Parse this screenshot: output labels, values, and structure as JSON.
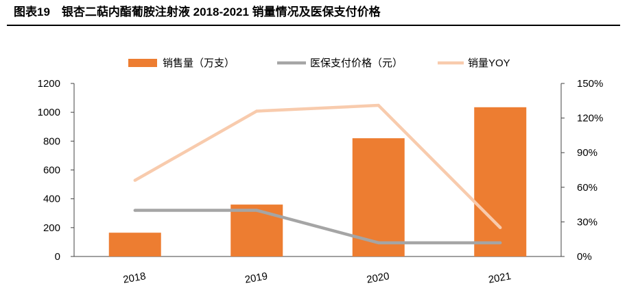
{
  "figure_title": "图表19　银杏二萜内酯葡胺注射液 2018-2021 销量情况及医保支付价格",
  "chart_data": {
    "type": "bar",
    "title": "图表19　银杏二萜内酯葡胺注射液 2018-2021 销量情况及医保支付价格",
    "categories": [
      "2018",
      "2019",
      "2020",
      "2021"
    ],
    "series": [
      {
        "name": "销售量（万支）",
        "type": "bar",
        "axis": "left",
        "color": "#ED7D31",
        "values": [
          165,
          360,
          820,
          1035
        ]
      },
      {
        "name": "医保支付价格（元）",
        "type": "line",
        "axis": "left",
        "color": "#A5A5A5",
        "values": [
          320,
          320,
          95,
          95
        ]
      },
      {
        "name": "销量YOY",
        "type": "line",
        "axis": "right",
        "color": "#F8CBAD",
        "values": [
          0.66,
          1.26,
          1.31,
          0.25
        ]
      }
    ],
    "y_left": {
      "min": 0,
      "max": 1200,
      "ticks": [
        0,
        200,
        400,
        600,
        800,
        1000,
        1200
      ],
      "tick_labels": [
        "0",
        "200",
        "400",
        "600",
        "800",
        "1000",
        "1200"
      ]
    },
    "y_right": {
      "min": 0,
      "max": 1.5,
      "ticks": [
        0,
        0.3,
        0.6,
        0.9,
        1.2,
        1.5
      ],
      "tick_labels": [
        "0%",
        "30%",
        "60%",
        "90%",
        "120%",
        "150%"
      ]
    },
    "xlabel": "",
    "ylabel": "",
    "grid": false,
    "legend_position": "top-center"
  }
}
